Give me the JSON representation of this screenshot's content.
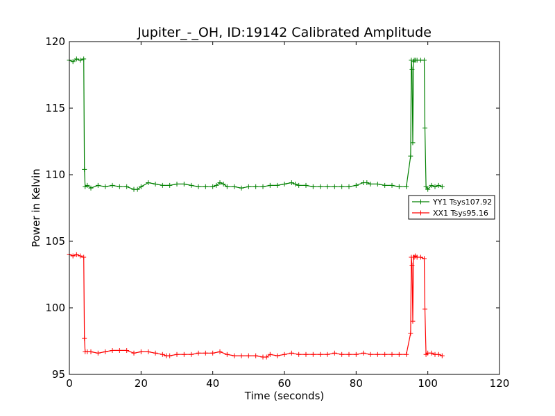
{
  "chart_data": {
    "type": "line",
    "title": "Jupiter_-_OH, ID:19142 Calibrated Amplitude",
    "xlabel": "Time (seconds)",
    "ylabel": "Power in Kelvin",
    "xlim": [
      0,
      120
    ],
    "ylim": [
      95,
      120
    ],
    "xticks": [
      "0",
      "20",
      "40",
      "60",
      "80",
      "100",
      "120"
    ],
    "yticks": [
      "95",
      "100",
      "105",
      "110",
      "115",
      "120"
    ],
    "grid": false,
    "legend_position": "right",
    "series": [
      {
        "name": "YY1 Tsys107.92",
        "color": "#008000",
        "x": [
          0,
          1,
          2,
          3,
          4,
          4.2,
          4.4,
          5,
          6,
          8,
          10,
          12,
          14,
          16,
          18,
          19,
          20,
          22,
          24,
          26,
          28,
          30,
          32,
          34,
          36,
          38,
          40,
          41,
          42,
          43,
          44,
          46,
          48,
          50,
          52,
          54,
          56,
          58,
          60,
          62,
          63,
          64,
          66,
          68,
          70,
          72,
          74,
          76,
          78,
          80,
          82,
          83,
          84,
          86,
          88,
          90,
          92,
          94,
          95.2,
          95.4,
          95.6,
          95.8,
          96,
          96.2,
          96.5,
          97,
          98,
          99,
          99.2,
          99.5,
          100,
          101,
          102,
          103,
          104
        ],
        "values": [
          118.6,
          118.5,
          118.7,
          118.6,
          118.7,
          110.4,
          109.1,
          109.2,
          109.0,
          109.2,
          109.1,
          109.2,
          109.1,
          109.1,
          108.9,
          108.9,
          109.1,
          109.4,
          109.3,
          109.2,
          109.2,
          109.3,
          109.3,
          109.2,
          109.1,
          109.1,
          109.1,
          109.2,
          109.4,
          109.3,
          109.1,
          109.1,
          109.0,
          109.1,
          109.1,
          109.1,
          109.2,
          109.2,
          109.3,
          109.4,
          109.3,
          109.2,
          109.2,
          109.1,
          109.1,
          109.1,
          109.1,
          109.1,
          109.1,
          109.2,
          109.4,
          109.4,
          109.3,
          109.3,
          109.2,
          109.2,
          109.1,
          109.1,
          111.4,
          118.6,
          117.9,
          112.4,
          118.5,
          118.6,
          118.6,
          118.6,
          118.6,
          118.6,
          113.5,
          109.1,
          108.9,
          109.2,
          109.1,
          109.2,
          109.1
        ]
      },
      {
        "name": "XX1 Tsys95.16",
        "color": "#ff0000",
        "x": [
          0,
          1,
          2,
          3,
          4,
          4.2,
          4.4,
          5,
          6,
          8,
          10,
          12,
          14,
          16,
          18,
          20,
          22,
          24,
          26,
          27,
          28,
          30,
          32,
          34,
          36,
          38,
          40,
          42,
          44,
          46,
          48,
          50,
          52,
          54,
          55,
          56,
          58,
          60,
          62,
          64,
          66,
          68,
          70,
          72,
          74,
          76,
          78,
          80,
          82,
          84,
          86,
          88,
          90,
          92,
          94,
          95.2,
          95.4,
          95.6,
          95.8,
          96,
          96.2,
          96.5,
          97,
          98,
          99,
          99.2,
          99.5,
          100,
          101,
          102,
          103,
          104
        ],
        "values": [
          104.0,
          103.9,
          104.0,
          103.9,
          103.8,
          97.7,
          96.7,
          96.7,
          96.7,
          96.6,
          96.7,
          96.8,
          96.8,
          96.8,
          96.6,
          96.7,
          96.7,
          96.6,
          96.5,
          96.4,
          96.4,
          96.5,
          96.5,
          96.5,
          96.6,
          96.6,
          96.6,
          96.7,
          96.5,
          96.4,
          96.4,
          96.4,
          96.4,
          96.3,
          96.3,
          96.5,
          96.4,
          96.5,
          96.6,
          96.5,
          96.5,
          96.5,
          96.5,
          96.5,
          96.6,
          96.5,
          96.5,
          96.5,
          96.6,
          96.5,
          96.5,
          96.5,
          96.5,
          96.5,
          96.5,
          98.1,
          103.8,
          103.2,
          99.0,
          103.8,
          103.8,
          103.9,
          103.8,
          103.8,
          103.7,
          99.9,
          96.5,
          96.6,
          96.6,
          96.5,
          96.5,
          96.4
        ]
      }
    ]
  }
}
